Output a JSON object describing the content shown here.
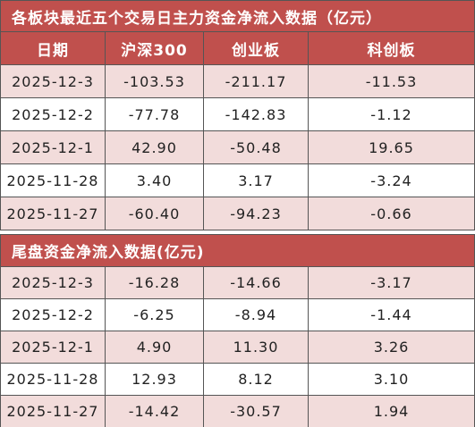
{
  "section1": {
    "title": "各板块最近五个交易日主力资金净流入数据（亿元）",
    "header": [
      "日期",
      "沪深300",
      "创业板",
      "科创板"
    ],
    "rows": [
      [
        "2025-12-3",
        "-103.53",
        "-211.17",
        "-11.53"
      ],
      [
        "2025-12-2",
        "-77.78",
        "-142.83",
        "-1.12"
      ],
      [
        "2025-12-1",
        "42.90",
        "-50.48",
        "19.65"
      ],
      [
        "2025-11-28",
        "3.40",
        "3.17",
        "-3.24"
      ],
      [
        "2025-11-27",
        "-60.40",
        "-94.23",
        "-0.66"
      ]
    ]
  },
  "section2": {
    "title": "尾盘资金净流入数据(亿元)",
    "rows": [
      [
        "2025-12-3",
        "-16.28",
        "-14.66",
        "-3.17"
      ],
      [
        "2025-12-2",
        "-6.25",
        "-8.94",
        "-1.44"
      ],
      [
        "2025-12-1",
        "4.90",
        "11.30",
        "3.26"
      ],
      [
        "2025-11-28",
        "12.93",
        "8.12",
        "3.10"
      ],
      [
        "2025-11-27",
        "-14.42",
        "-30.57",
        "1.94"
      ]
    ]
  }
}
